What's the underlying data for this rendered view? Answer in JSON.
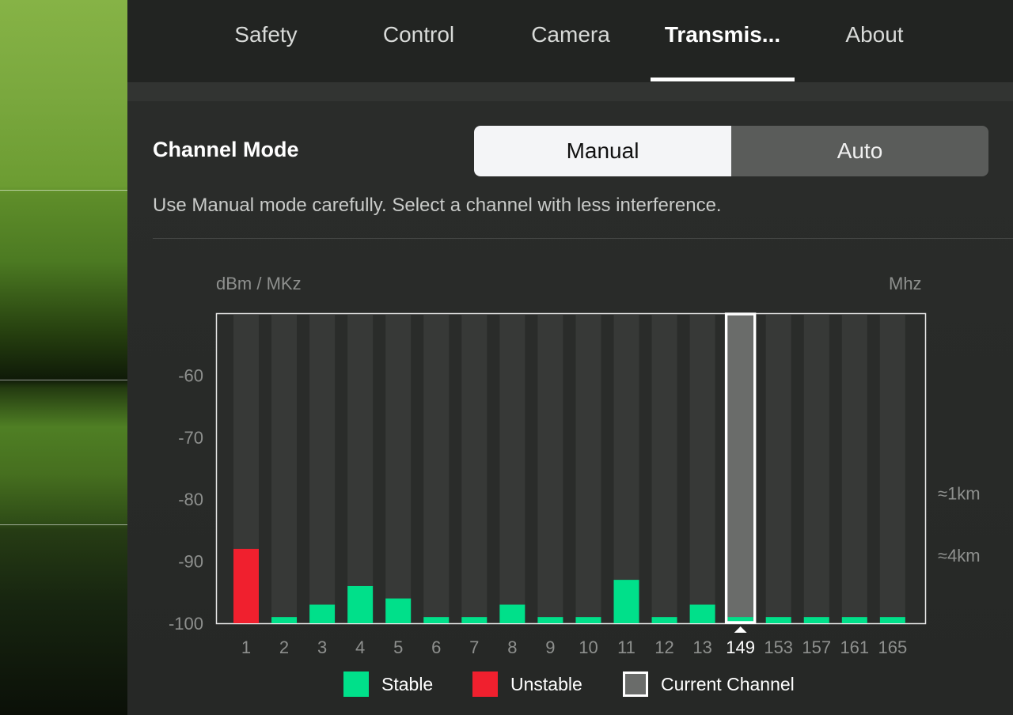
{
  "tabs": [
    {
      "label": "Safety",
      "active": false
    },
    {
      "label": "Control",
      "active": false
    },
    {
      "label": "Camera",
      "active": false
    },
    {
      "label": "Transmis...",
      "active": true
    },
    {
      "label": "About",
      "active": false
    }
  ],
  "channel_mode": {
    "title": "Channel Mode",
    "options": [
      "Manual",
      "Auto"
    ],
    "selected": "Manual",
    "hint": "Use Manual mode carefully. Select a channel with less interference."
  },
  "chart_data": {
    "type": "bar",
    "ylabel": "dBm / MKz",
    "xlabel": "Mhz",
    "ylim": [
      -100,
      -50
    ],
    "yticks": [
      -60,
      -70,
      -80,
      -90,
      -100
    ],
    "categories": [
      "1",
      "2",
      "3",
      "4",
      "5",
      "6",
      "7",
      "8",
      "9",
      "10",
      "11",
      "12",
      "13",
      "149",
      "153",
      "157",
      "161",
      "165"
    ],
    "values": [
      -88,
      -99,
      -97,
      -94,
      -96,
      -99,
      -99,
      -97,
      -99,
      -99,
      -93,
      -99,
      -97,
      -99,
      -99,
      -99,
      -99,
      -99
    ],
    "status": [
      "Unstable",
      "Stable",
      "Stable",
      "Stable",
      "Stable",
      "Stable",
      "Stable",
      "Stable",
      "Stable",
      "Stable",
      "Stable",
      "Stable",
      "Stable",
      "Stable",
      "Stable",
      "Stable",
      "Stable",
      "Stable"
    ],
    "current_channel": "149",
    "range_markers": [
      {
        "label": "≈1km",
        "value": -79
      },
      {
        "label": "≈4km",
        "value": -89
      }
    ],
    "colors": {
      "Stable": "#00e08a",
      "Unstable": "#f0202e",
      "Current Channel": "#6a6c6a"
    }
  },
  "legend": [
    {
      "label": "Stable",
      "color": "#00e08a"
    },
    {
      "label": "Unstable",
      "color": "#f0202e"
    },
    {
      "label": "Current Channel",
      "color": "#6a6c6a"
    }
  ]
}
